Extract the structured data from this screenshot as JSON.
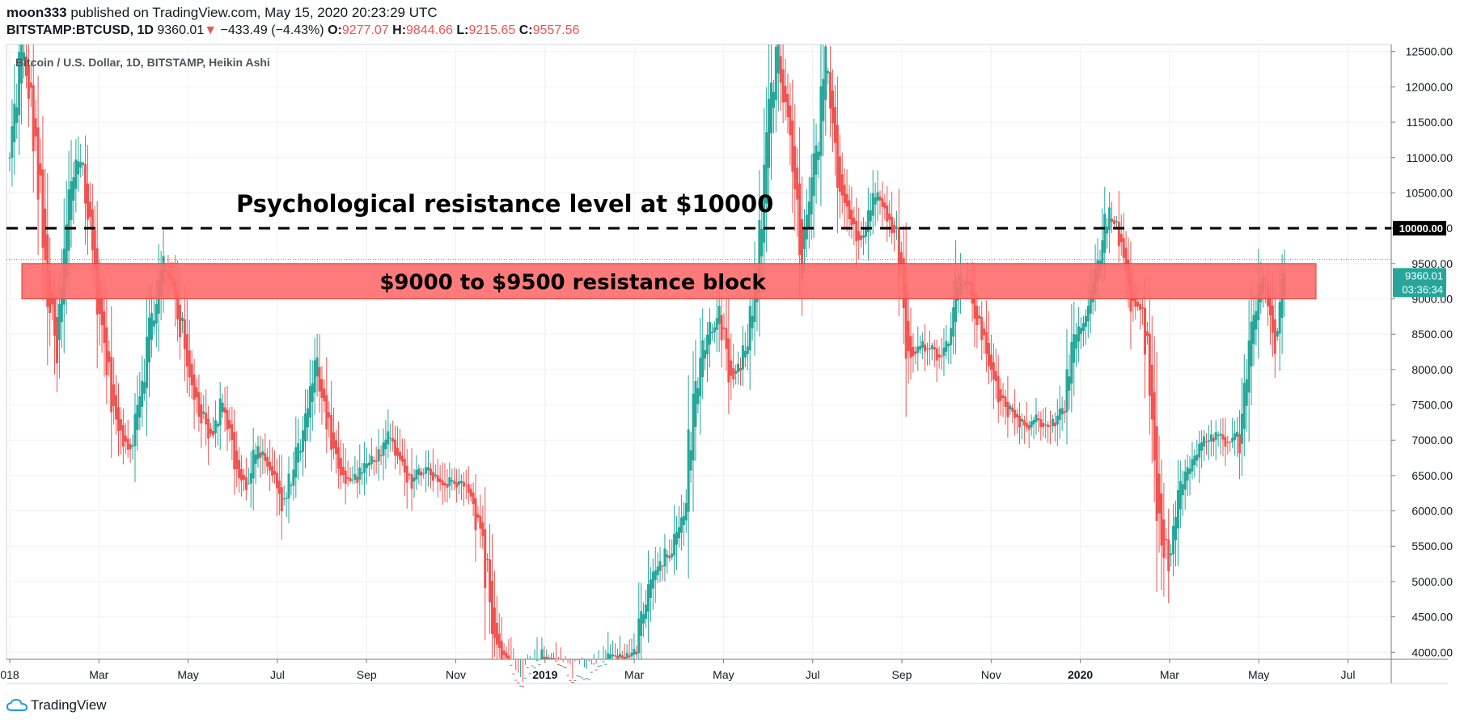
{
  "header": {
    "author": "moon333",
    "published_text": "published on TradingView.com, May 15, 2020 20:23:29 UTC",
    "symbol": "BITSTAMP:BTCUSD, 1D",
    "last": "9360.01",
    "change": "−433.49 (−4.43%)",
    "o_label": "O:",
    "o_value": "9277.07",
    "h_label": "H:",
    "h_value": "9844.66",
    "l_label": "L:",
    "l_value": "9215.65",
    "c_label": "C:",
    "c_value": "9557.56"
  },
  "footer": {
    "brand": "TradingView"
  },
  "chart_data": {
    "type": "candlestick",
    "title": "Bitcoin / U.S. Dollar, 1D, BITSTAMP, Heikin Ashi",
    "ylim": [
      3900,
      12600
    ],
    "y_ticks": [
      "12500.00",
      "12000.00",
      "11500.00",
      "11000.00",
      "10500.00",
      "10000.00",
      "9500.00",
      "9000.00",
      "8500.00",
      "8000.00",
      "7500.00",
      "7000.00",
      "6500.00",
      "6000.00",
      "5500.00",
      "5000.00",
      "4500.00",
      "4000.00"
    ],
    "x_ticks": [
      "018",
      "Mar",
      "May",
      "Jul",
      "Sep",
      "Nov",
      "2019",
      "Mar",
      "May",
      "Jul",
      "Sep",
      "Nov",
      "2020",
      "Mar",
      "May",
      "Jul"
    ],
    "x_ticks_bold": [
      "2019",
      "2020"
    ],
    "series": [
      {
        "points": [
          [
            10900,
            1
          ],
          [
            12600,
            1
          ],
          [
            11500,
            -1
          ],
          [
            9400,
            -1
          ],
          [
            8100,
            1
          ],
          [
            10500,
            1
          ],
          [
            11200,
            1
          ],
          [
            9600,
            -1
          ],
          [
            8300,
            -1
          ],
          [
            7200,
            -1
          ],
          [
            6800,
            1
          ],
          [
            7700,
            1
          ],
          [
            8700,
            1
          ],
          [
            9500,
            -1
          ],
          [
            9100,
            -1
          ],
          [
            8000,
            -1
          ],
          [
            7500,
            -1
          ],
          [
            7000,
            -1
          ],
          [
            7600,
            1
          ],
          [
            6700,
            -1
          ],
          [
            6300,
            -1
          ],
          [
            6900,
            1
          ],
          [
            6600,
            1
          ],
          [
            6000,
            -1
          ],
          [
            6600,
            1
          ],
          [
            7300,
            1
          ],
          [
            8100,
            -1
          ],
          [
            7200,
            -1
          ],
          [
            6500,
            -1
          ],
          [
            6400,
            1
          ],
          [
            6600,
            1
          ],
          [
            6800,
            1
          ],
          [
            7000,
            -1
          ],
          [
            6700,
            1
          ],
          [
            6400,
            -1
          ],
          [
            6600,
            1
          ],
          [
            6500,
            1
          ],
          [
            6400,
            -1
          ],
          [
            6400,
            -1
          ],
          [
            6300,
            -1
          ],
          [
            5500,
            -1
          ],
          [
            4200,
            -1
          ],
          [
            3800,
            -1
          ],
          [
            3400,
            -1
          ],
          [
            3700,
            1
          ],
          [
            4000,
            1
          ],
          [
            3900,
            -1
          ],
          [
            3600,
            -1
          ],
          [
            3600,
            -1
          ],
          [
            3700,
            -1
          ],
          [
            3900,
            1
          ],
          [
            3900,
            1
          ],
          [
            3950,
            1
          ],
          [
            4100,
            1
          ],
          [
            5000,
            1
          ],
          [
            5200,
            1
          ],
          [
            5500,
            1
          ],
          [
            6000,
            1
          ],
          [
            7800,
            1
          ],
          [
            8500,
            1
          ],
          [
            8700,
            1
          ],
          [
            7800,
            -1
          ],
          [
            8100,
            1
          ],
          [
            9000,
            1
          ],
          [
            11500,
            1
          ],
          [
            12500,
            1
          ],
          [
            11000,
            -1
          ],
          [
            9600,
            -1
          ],
          [
            10800,
            1
          ],
          [
            12200,
            1
          ],
          [
            10700,
            -1
          ],
          [
            10200,
            -1
          ],
          [
            9800,
            -1
          ],
          [
            10500,
            1
          ],
          [
            10300,
            -1
          ],
          [
            9900,
            -1
          ],
          [
            8200,
            -1
          ],
          [
            8300,
            1
          ],
          [
            8400,
            1
          ],
          [
            8100,
            -1
          ],
          [
            9300,
            1
          ],
          [
            9200,
            -1
          ],
          [
            8600,
            -1
          ],
          [
            8000,
            -1
          ],
          [
            7500,
            -1
          ],
          [
            7300,
            -1
          ],
          [
            7200,
            -1
          ],
          [
            7300,
            1
          ],
          [
            7200,
            -1
          ],
          [
            7500,
            1
          ],
          [
            8300,
            1
          ],
          [
            8800,
            1
          ],
          [
            9400,
            1
          ],
          [
            10300,
            1
          ],
          [
            9700,
            -1
          ],
          [
            8900,
            -1
          ],
          [
            8800,
            1
          ],
          [
            6000,
            -1
          ],
          [
            5200,
            -1
          ],
          [
            6400,
            1
          ],
          [
            6700,
            1
          ],
          [
            7000,
            1
          ],
          [
            7100,
            -1
          ],
          [
            6900,
            -1
          ],
          [
            7200,
            1
          ],
          [
            8800,
            1
          ],
          [
            9300,
            1
          ],
          [
            8400,
            -1
          ],
          [
            9360,
            1
          ]
        ]
      }
    ],
    "annotations": {
      "psych_label": "Psychological resistance level at $10000",
      "psych_level": 10000,
      "block_label": "$9000 to $9500 resistance block",
      "block_range": [
        9000,
        9500
      ],
      "last_price_line": 9560
    },
    "price_badges": {
      "level_badge": "10000.00",
      "last_badge": "9360.01",
      "countdown_badge": "03:36:34"
    },
    "colors": {
      "up": "#26a69a",
      "down": "#ef5350",
      "block": "#ff6b6b",
      "accent": "#26a69a"
    },
    "grid": true
  }
}
